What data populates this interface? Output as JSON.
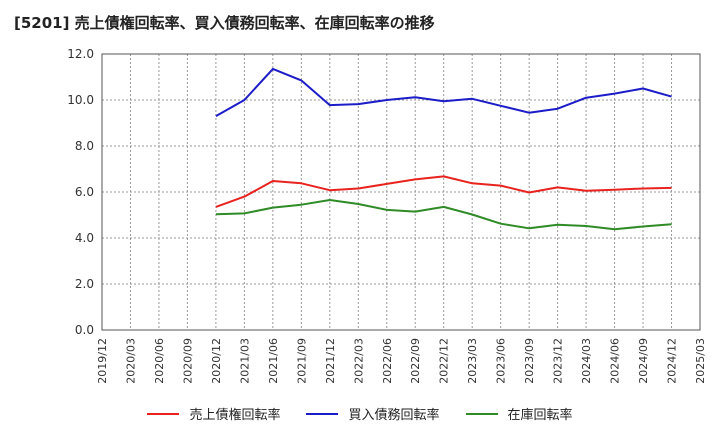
{
  "chart_data": {
    "type": "line",
    "title": "[5201]  売上債権回転率、買入債務回転率、在庫回転率の推移",
    "xlabel": "",
    "ylabel": "",
    "ylim": [
      0,
      12
    ],
    "yticks": [
      "0.0",
      "2.0",
      "4.0",
      "6.0",
      "8.0",
      "10.0",
      "12.0"
    ],
    "categories": [
      "2019/12",
      "2020/03",
      "2020/06",
      "2020/09",
      "2020/12",
      "2021/03",
      "2021/06",
      "2021/09",
      "2021/12",
      "2022/03",
      "2022/06",
      "2022/09",
      "2022/12",
      "2023/03",
      "2023/06",
      "2023/09",
      "2023/12",
      "2024/03",
      "2024/06",
      "2024/09",
      "2024/12",
      "2025/03"
    ],
    "grid": true,
    "legend_position": "bottom",
    "series": [
      {
        "name": "売上債権回転率",
        "color": "#e8231e",
        "values": [
          null,
          null,
          null,
          null,
          5.35,
          5.8,
          6.48,
          6.38,
          6.08,
          6.15,
          6.35,
          6.55,
          6.68,
          6.38,
          6.28,
          5.98,
          6.2,
          6.05,
          6.1,
          6.15,
          6.18,
          null
        ]
      },
      {
        "name": "買入債務回転率",
        "color": "#1c1cc9",
        "values": [
          null,
          null,
          null,
          null,
          9.3,
          10.0,
          11.35,
          10.85,
          9.78,
          9.82,
          10.0,
          10.12,
          9.95,
          10.05,
          9.75,
          9.45,
          9.62,
          10.1,
          10.28,
          10.5,
          10.15,
          null
        ]
      },
      {
        "name": "在庫回転率",
        "color": "#2e8b26",
        "values": [
          null,
          null,
          null,
          null,
          5.03,
          5.07,
          5.32,
          5.45,
          5.65,
          5.48,
          5.22,
          5.15,
          5.35,
          5.02,
          4.62,
          4.42,
          4.58,
          4.52,
          4.38,
          4.5,
          4.6,
          null
        ]
      }
    ]
  }
}
